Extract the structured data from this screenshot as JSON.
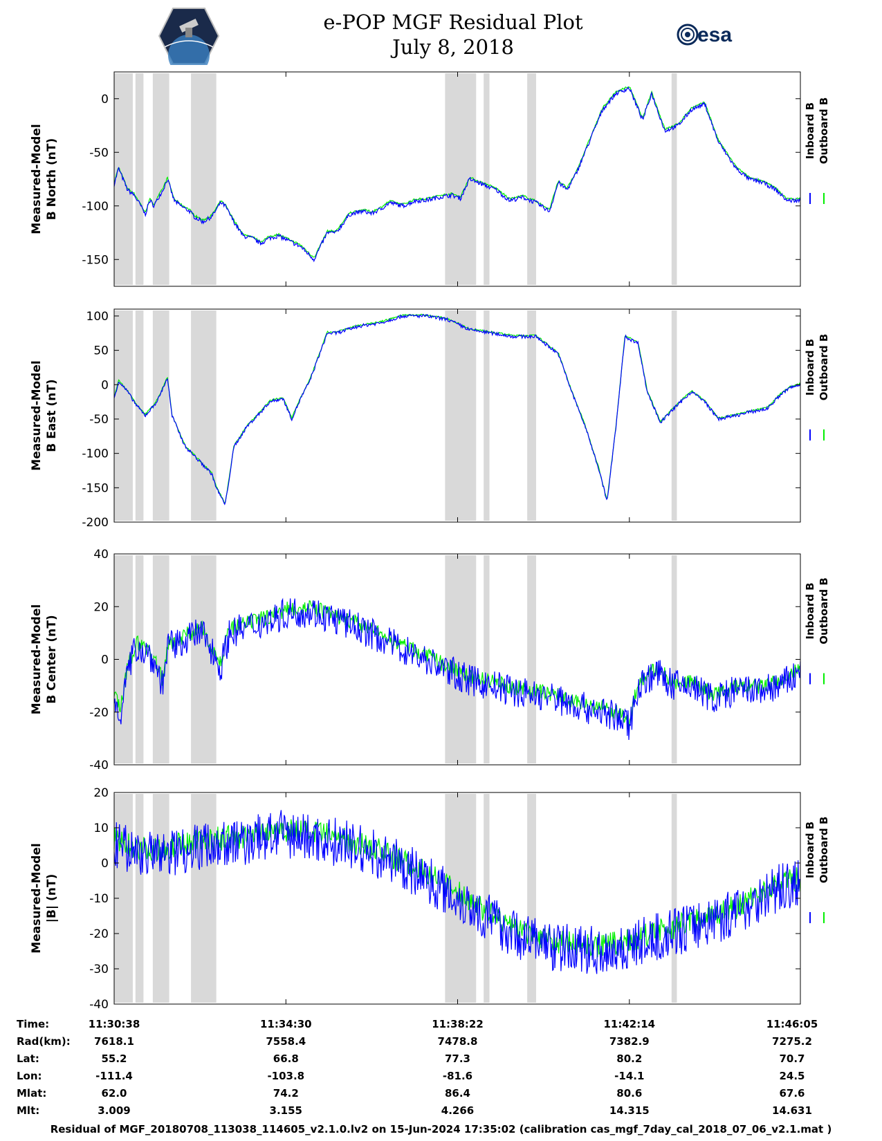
{
  "title": {
    "line1": "e-POP MGF Residual Plot",
    "line2": "July 8, 2018"
  },
  "logos": {
    "left": "CASSIOPE",
    "right": "esa"
  },
  "colors": {
    "inboard": "#0000ff",
    "outboard": "#00ee00",
    "gap": "#d9d9d9"
  },
  "chart_data": [
    {
      "type": "line",
      "ylabel": [
        "Measured-Model",
        "B North (nT)"
      ],
      "ylim": [
        -175,
        25
      ],
      "yticks": [
        0,
        -50,
        -100,
        -150
      ],
      "legend": [
        "Inboard B",
        "Outboard B"
      ],
      "noise": 2,
      "inboard_x": [
        0,
        0.1,
        0.3,
        0.45,
        0.6,
        0.7,
        0.8,
        0.9,
        1.0,
        1.1,
        1.2,
        1.35,
        1.5,
        1.7,
        1.8,
        2.0,
        2.2,
        2.4,
        2.5,
        2.7,
        2.9,
        3.1,
        3.3,
        3.5,
        3.7,
        3.9,
        4.2,
        4.5,
        4.8,
        5.0,
        5.3,
        5.6,
        5.8,
        6.0,
        6.2,
        6.5,
        6.8,
        7.0,
        7.3,
        7.6,
        7.8,
        8.0,
        8.3,
        8.6,
        8.9,
        9.2,
        9.5,
        9.8,
        10.0,
        10.2,
        10.4,
        10.5,
        10.7,
        10.9,
        11.0,
        11.3,
        11.6,
        11.9,
        12.1,
        12.4,
        12.7,
        13.0,
        13.3,
        13.6,
        14.0,
        14.3,
        14.6,
        14.9,
        15.15,
        15.45
      ],
      "inboard_y": [
        -80,
        -65,
        -85,
        -90,
        -100,
        -108,
        -95,
        -100,
        -92,
        -85,
        -75,
        -95,
        -100,
        -105,
        -110,
        -115,
        -110,
        -97,
        -100,
        -115,
        -128,
        -130,
        -135,
        -130,
        -128,
        -132,
        -138,
        -150,
        -125,
        -125,
        -108,
        -105,
        -107,
        -103,
        -97,
        -100,
        -95,
        -95,
        -92,
        -90,
        -93,
        -75,
        -80,
        -85,
        -95,
        -92,
        -97,
        -105,
        -78,
        -85,
        -70,
        -60,
        -40,
        -20,
        -10,
        5,
        10,
        -20,
        5,
        -30,
        -25,
        -10,
        -5,
        -40,
        -65,
        -75,
        -78,
        -85,
        -95,
        -95
      ]
    },
    {
      "type": "line",
      "ylabel": [
        "Measured-Model",
        "B East (nT)"
      ],
      "ylim": [
        -200,
        110
      ],
      "yticks": [
        100,
        50,
        0,
        -50,
        -100,
        -150,
        -200
      ],
      "legend": [
        "Inboard B",
        "Outboard B"
      ],
      "noise": 2.5,
      "inboard_x": [
        0,
        0.1,
        0.3,
        0.5,
        0.7,
        0.9,
        1.0,
        1.1,
        1.2,
        1.3,
        1.6,
        1.9,
        2.2,
        2.3,
        2.5,
        2.7,
        3.0,
        3.3,
        3.5,
        3.8,
        4.0,
        4.2,
        4.4,
        4.6,
        4.8,
        5.0,
        5.5,
        6.0,
        6.5,
        7.0,
        7.5,
        8.0,
        8.5,
        9.0,
        9.5,
        10.0,
        10.3,
        10.6,
        10.9,
        11.1,
        11.3,
        11.5,
        11.8,
        12.0,
        12.3,
        12.6,
        13.0,
        13.3,
        13.6,
        14.0,
        14.3,
        14.7,
        15.0,
        15.2,
        15.45
      ],
      "inboard_y": [
        -20,
        5,
        -10,
        -30,
        -45,
        -30,
        -20,
        -5,
        10,
        -45,
        -90,
        -110,
        -130,
        -150,
        -175,
        -90,
        -60,
        -40,
        -25,
        -20,
        -50,
        -20,
        5,
        40,
        75,
        75,
        85,
        90,
        100,
        100,
        95,
        80,
        75,
        70,
        70,
        45,
        -10,
        -60,
        -120,
        -170,
        -60,
        70,
        60,
        -10,
        -55,
        -35,
        -10,
        -25,
        -50,
        -45,
        -40,
        -35,
        -15,
        -5,
        0
      ]
    },
    {
      "type": "line",
      "ylabel": [
        "Measured-Model",
        "B Center (nT)"
      ],
      "ylim": [
        -40,
        40
      ],
      "yticks": [
        40,
        20,
        0,
        -20,
        -40
      ],
      "legend": [
        "Inboard B",
        "Outboard B"
      ],
      "noise": 6,
      "inboard_x": [
        0,
        0.15,
        0.3,
        0.5,
        0.8,
        1.0,
        1.1,
        1.2,
        1.4,
        1.6,
        2.0,
        2.4,
        2.6,
        3.0,
        3.5,
        4.0,
        4.5,
        5.0,
        5.5,
        6.0,
        7.0,
        8.0,
        9.0,
        10.0,
        10.5,
        11.0,
        11.3,
        11.6,
        11.8,
        12.2,
        12.6,
        13.0,
        13.5,
        14.0,
        14.5,
        15.0,
        15.45
      ],
      "inboard_y": [
        -15,
        -20,
        -5,
        5,
        2,
        -5,
        -10,
        5,
        5,
        8,
        10,
        -3,
        10,
        12,
        15,
        18,
        18,
        15,
        12,
        8,
        0,
        -8,
        -12,
        -15,
        -18,
        -20,
        -22,
        -25,
        -10,
        -5,
        -10,
        -10,
        -15,
        -12,
        -12,
        -10,
        -5
      ]
    },
    {
      "type": "line",
      "ylabel": [
        "Measured-Model",
        "|B| (nT)"
      ],
      "ylim": [
        -40,
        20
      ],
      "yticks": [
        20,
        10,
        0,
        -10,
        -20,
        -30,
        -40
      ],
      "legend": [
        "Inboard B",
        "Outboard B"
      ],
      "noise": 7,
      "inboard_x": [
        0,
        0.5,
        1.0,
        1.5,
        2.0,
        3.0,
        3.5,
        4.0,
        5.0,
        6.0,
        7.0,
        8.0,
        8.5,
        9.0,
        9.5,
        10.0,
        11.0,
        11.5,
        12.0,
        12.5,
        13.0,
        14.0,
        14.5,
        15.0,
        15.45
      ],
      "inboard_y": [
        5,
        3,
        2,
        4,
        5,
        6,
        8,
        8,
        6,
        2,
        -4,
        -12,
        -16,
        -20,
        -22,
        -24,
        -25,
        -24,
        -22,
        -20,
        -18,
        -14,
        -10,
        -7,
        -6
      ]
    }
  ],
  "x_axis": {
    "ticks": [
      0,
      3.867,
      7.733,
      11.6,
      15.45
    ],
    "gaps": [
      [
        0,
        0.42
      ],
      [
        0.48,
        0.66
      ],
      [
        0.87,
        1.24
      ],
      [
        1.73,
        2.3
      ],
      [
        7.45,
        8.15
      ],
      [
        8.32,
        8.45
      ],
      [
        9.3,
        9.5
      ],
      [
        12.55,
        12.67
      ]
    ]
  },
  "info": {
    "labels": [
      "Time:",
      "Rad(km):",
      "Lat:",
      "Lon:",
      "Mlat:",
      "Mlt:"
    ],
    "columns": [
      [
        "11:30:38",
        "7618.1",
        "55.2",
        "-111.4",
        "62.0",
        "3.009"
      ],
      [
        "11:34:30",
        "7558.4",
        "66.8",
        "-103.8",
        "74.2",
        "3.155"
      ],
      [
        "11:38:22",
        "7478.8",
        "77.3",
        "-81.6",
        "86.4",
        "4.266"
      ],
      [
        "11:42:14",
        "7382.9",
        "80.2",
        "-14.1",
        "80.6",
        "14.315"
      ],
      [
        "11:46:05",
        "7275.2",
        "70.7",
        "24.5",
        "67.6",
        "14.631"
      ]
    ]
  },
  "footer": "Residual of MGF_20180708_113038_114605_v2.1.0.lv2 on 15-Jun-2024 17:35:02 (calibration cas_mgf_7day_cal_2018_07_06_v2.1.mat )"
}
